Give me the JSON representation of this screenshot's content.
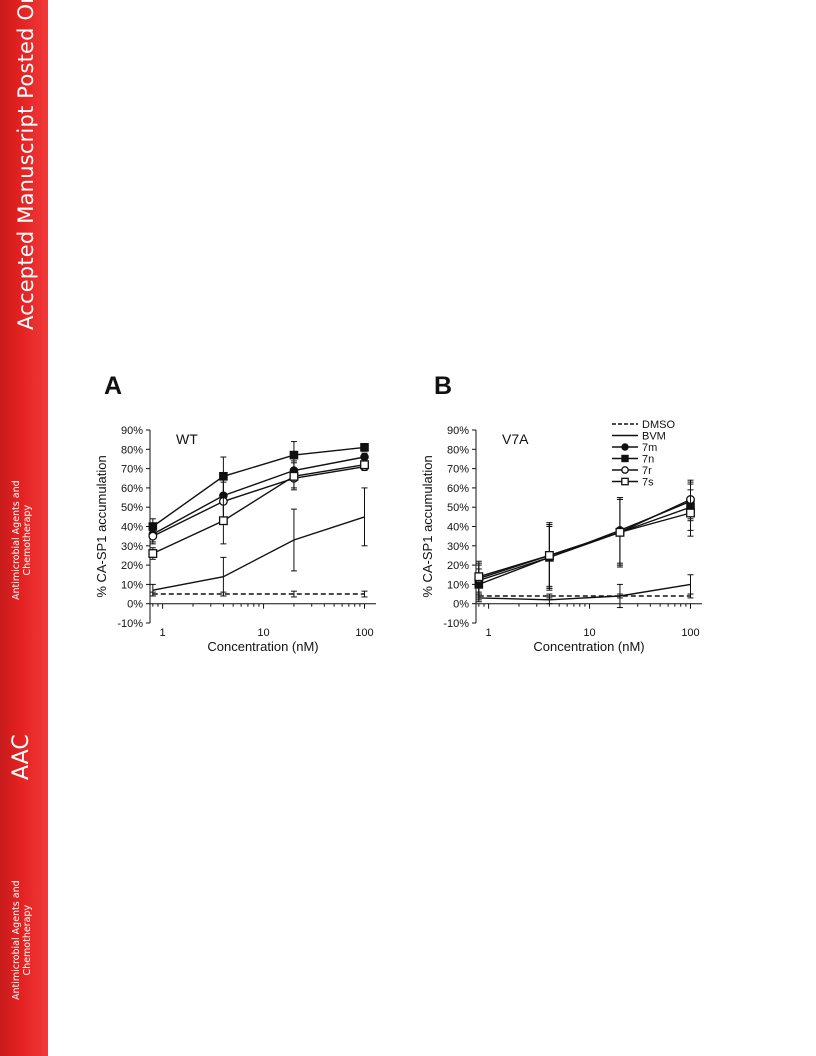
{
  "sidebar": {
    "title": "Accepted Manuscript Posted Online",
    "journal_line1": "Antimicrobial Agents and",
    "journal_line2": "Chemotherapy",
    "abbrev": "AAC",
    "background_color": "#e52222"
  },
  "chart_data": [
    {
      "panel": "A",
      "type": "line",
      "title": "WT",
      "xlabel": "Concentration (nM)",
      "ylabel": "% CA-SP1 accumulation",
      "xscale": "log",
      "xlim": [
        0.75,
        130
      ],
      "ylim": [
        -10,
        90
      ],
      "x_ticks": [
        "1",
        "10",
        "100"
      ],
      "y_ticks": [
        "-10%",
        "0%",
        "10%",
        "20%",
        "30%",
        "40%",
        "50%",
        "60%",
        "70%",
        "80%",
        "90%"
      ],
      "x": [
        0.8,
        4,
        20,
        100
      ],
      "series": [
        {
          "name": "DMSO",
          "style": "dashed",
          "marker": "none",
          "values": [
            5,
            5,
            5,
            5
          ],
          "errors": [
            1,
            1,
            1.5,
            1.5
          ]
        },
        {
          "name": "BVM",
          "style": "solid",
          "marker": "none",
          "values": [
            7,
            14,
            33,
            45
          ],
          "errors": [
            3,
            10,
            16,
            15
          ]
        },
        {
          "name": "7m",
          "style": "solid",
          "marker": "filled-circle",
          "values": [
            36,
            56,
            69,
            76
          ],
          "errors": [
            4,
            12,
            5,
            2
          ]
        },
        {
          "name": "7n",
          "style": "solid",
          "marker": "filled-square",
          "values": [
            40,
            66,
            77,
            81
          ],
          "errors": [
            4,
            10,
            7,
            2
          ]
        },
        {
          "name": "7r",
          "style": "solid",
          "marker": "open-circle",
          "values": [
            35,
            53,
            65,
            71
          ],
          "errors": [
            4,
            10,
            5,
            2
          ]
        },
        {
          "name": "7s",
          "style": "solid",
          "marker": "open-square",
          "values": [
            26,
            43,
            66,
            72
          ],
          "errors": [
            3,
            12,
            7,
            2
          ]
        }
      ]
    },
    {
      "panel": "B",
      "type": "line",
      "title": "V7A",
      "xlabel": "Concentration (nM)",
      "ylabel": "% CA-SP1 accumulation",
      "xscale": "log",
      "xlim": [
        0.75,
        130
      ],
      "ylim": [
        -10,
        90
      ],
      "x_ticks": [
        "1",
        "10",
        "100"
      ],
      "y_ticks": [
        "-10%",
        "0%",
        "10%",
        "20%",
        "30%",
        "40%",
        "50%",
        "60%",
        "70%",
        "80%",
        "90%"
      ],
      "x": [
        0.8,
        4,
        20,
        100
      ],
      "legend": {
        "placement": "top-right"
      },
      "series": [
        {
          "name": "DMSO",
          "style": "dashed",
          "marker": "none",
          "values": [
            4,
            4,
            4,
            4
          ],
          "errors": [
            1,
            1,
            1,
            1
          ]
        },
        {
          "name": "BVM",
          "style": "solid",
          "marker": "none",
          "values": [
            3,
            2,
            4,
            10
          ],
          "errors": [
            2,
            2,
            6,
            5
          ]
        },
        {
          "name": "7m",
          "style": "solid",
          "marker": "filled-circle",
          "values": [
            12,
            24,
            38,
            53
          ],
          "errors": [
            8,
            16,
            17,
            10
          ]
        },
        {
          "name": "7n",
          "style": "solid",
          "marker": "filled-square",
          "values": [
            10,
            24,
            37,
            50
          ],
          "errors": [
            8,
            17,
            17,
            12
          ]
        },
        {
          "name": "7r",
          "style": "solid",
          "marker": "open-circle",
          "values": [
            13,
            25,
            37,
            54
          ],
          "errors": [
            8,
            16,
            18,
            10
          ]
        },
        {
          "name": "7s",
          "style": "solid",
          "marker": "open-square",
          "values": [
            14,
            25,
            37,
            47
          ],
          "errors": [
            8,
            17,
            17,
            12
          ]
        }
      ]
    }
  ]
}
